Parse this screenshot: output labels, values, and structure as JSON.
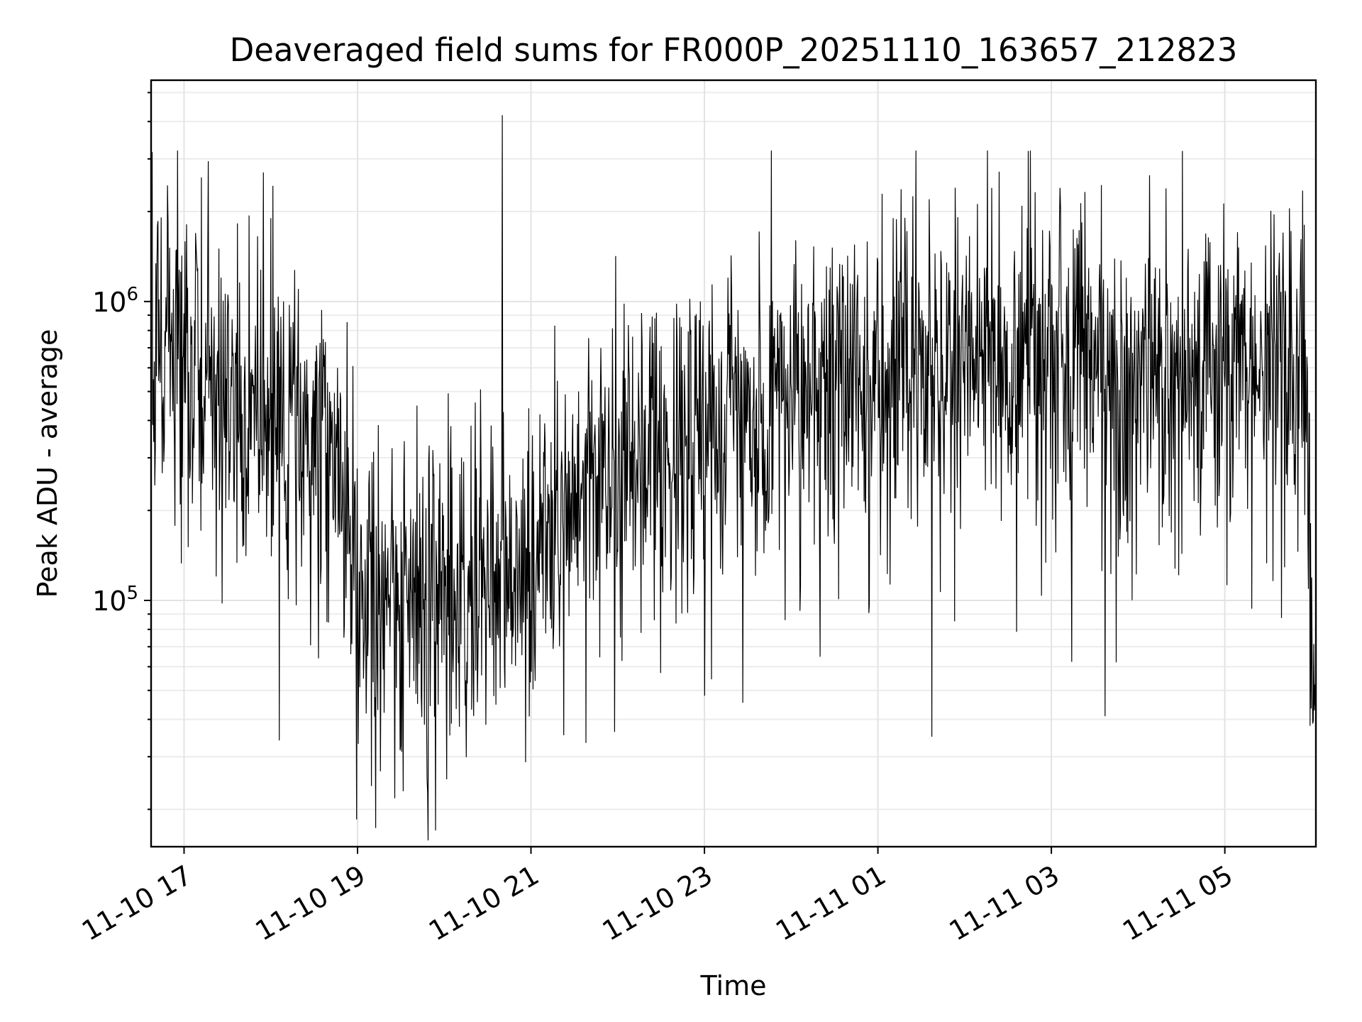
{
  "chart_data": {
    "type": "line",
    "title": "Deaveraged field sums for FR000P_20251110_163657_212823",
    "xlabel": "Time",
    "ylabel": "Peak ADU - average",
    "yscale": "log",
    "ylim": [
      15000,
      5500000
    ],
    "xlim_hours": [
      -0.38,
      13.05
    ],
    "x_start": "2025-11-10 16:37",
    "x_end": "2025-11-11 06:03",
    "grid": true,
    "series_color": "#000000",
    "x_ticks": [
      {
        "hour": 0,
        "label": "11-10 17"
      },
      {
        "hour": 2,
        "label": "11-10 19"
      },
      {
        "hour": 4,
        "label": "11-10 21"
      },
      {
        "hour": 6,
        "label": "11-10 23"
      },
      {
        "hour": 8,
        "label": "11-11 01"
      },
      {
        "hour": 10,
        "label": "11-11 03"
      },
      {
        "hour": 12,
        "label": "11-11 05"
      }
    ],
    "y_ticks": [
      {
        "value": 100000,
        "base": "10",
        "exp": "5"
      },
      {
        "value": 1000000,
        "base": "10",
        "exp": "6"
      }
    ],
    "trend": {
      "hours": [
        -0.38,
        0.0,
        0.5,
        1.0,
        1.5,
        1.8,
        2.0,
        2.5,
        3.0,
        3.5,
        4.0,
        4.5,
        5.0,
        5.5,
        6.0,
        6.5,
        7.0,
        7.5,
        8.0,
        8.5,
        9.0,
        9.5,
        10.0,
        10.5,
        11.0,
        11.5,
        12.0,
        12.5,
        12.9,
        13.0,
        13.05
      ],
      "median": [
        800000,
        700000,
        450000,
        420000,
        380000,
        250000,
        120000,
        100000,
        95000,
        110000,
        140000,
        220000,
        280000,
        330000,
        380000,
        430000,
        480000,
        560000,
        600000,
        620000,
        600000,
        620000,
        650000,
        640000,
        560000,
        600000,
        640000,
        620000,
        650000,
        90000,
        50000
      ]
    },
    "spikes": [
      {
        "hour": 3.67,
        "value": 4200000
      },
      {
        "hour": 0.2,
        "value": 2600000
      },
      {
        "hour": 10.1,
        "value": 2400000
      },
      {
        "hour": 12.9,
        "value": 2350000
      },
      {
        "hour": 8.4,
        "value": 2250000
      },
      {
        "hour": 1.0,
        "value": 1900000
      },
      {
        "hour": 2.9,
        "value": 17000
      },
      {
        "hour": 1.99,
        "value": 18500
      },
      {
        "hour": 1.1,
        "value": 34000
      },
      {
        "hour": 8.62,
        "value": 35000
      },
      {
        "hour": 10.62,
        "value": 41000
      },
      {
        "hour": 6.0,
        "value": 48000
      }
    ],
    "n_samples": 2200,
    "seed": 7
  }
}
